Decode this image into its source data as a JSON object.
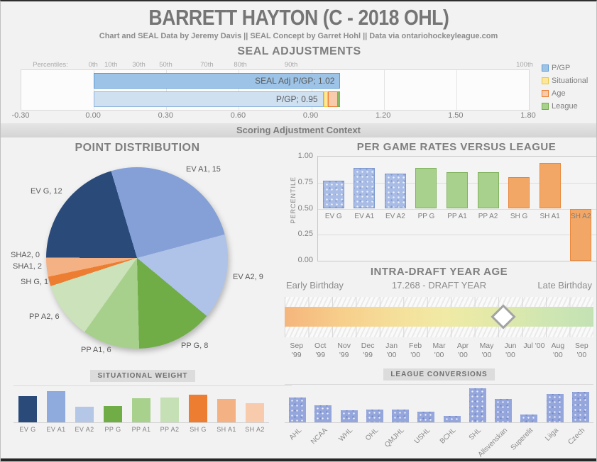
{
  "header": {
    "title": "BARRETT HAYTON (C - 2018 OHL)",
    "subtitle": "Chart and SEAL Data by Jeremy Davis || SEAL Concept by Garret Hohl || Data via ontariohockeyleague.com"
  },
  "divider": {
    "label": "Scoring Adjustment Context"
  },
  "chart_data": [
    {
      "type": "bar",
      "orientation": "horizontal-stacked",
      "title": "SEAL ADJUSTMENTS",
      "xlim": [
        -0.3,
        1.8
      ],
      "x_ticks": [
        "-0.30",
        "0.00",
        "0.30",
        "0.60",
        "0.90",
        "1.20",
        "1.50",
        "1.80"
      ],
      "percentiles_label": "Percentiles:",
      "percentile_scale": [
        {
          "label": "0th",
          "pos_pct": 14.3
        },
        {
          "label": "10th",
          "pos_pct": 17.8
        },
        {
          "label": "30th",
          "pos_pct": 23.3
        },
        {
          "label": "50th",
          "pos_pct": 28.6
        },
        {
          "label": "70th",
          "pos_pct": 36.7
        },
        {
          "label": "80th",
          "pos_pct": 43.3
        },
        {
          "label": "90th",
          "pos_pct": 53.3
        },
        {
          "label": "100th",
          "pos_pct": 99.3
        }
      ],
      "rows": [
        {
          "name": "SEAL Adj P/GP",
          "label": "SEAL Adj P/GP; 1.02",
          "value": 1.02,
          "fill": "#9DC3E6",
          "border": "#5B9BD5"
        },
        {
          "name": "P/GP",
          "label": "P/GP; 0.95",
          "segments": [
            {
              "name": "P/GP",
              "value": 0.95,
              "fill": "#CFE0F1",
              "border": "#8EB4DC"
            },
            {
              "name": "Situational",
              "value": 0.02,
              "fill": "#FFE699",
              "border": "#E7C945"
            },
            {
              "name": "Age",
              "value": 0.04,
              "fill": "#F8CBAD",
              "border": "#ED7D31"
            },
            {
              "name": "League",
              "value": 0.01,
              "fill": "#A9D18E",
              "border": "#70AD47"
            }
          ]
        }
      ],
      "legend_position": "right",
      "legend": [
        {
          "label": "P/GP",
          "fill": "#9DC3E6",
          "border": "#5B9BD5"
        },
        {
          "label": "Situational",
          "fill": "#FFE699",
          "border": "#E7C945"
        },
        {
          "label": "Age",
          "fill": "#F8CBAD",
          "border": "#ED7D31"
        },
        {
          "label": "League",
          "fill": "#A9D18E",
          "border": "#70AD47"
        }
      ]
    },
    {
      "type": "pie",
      "title": "POINT DISTRIBUTION",
      "start_angle_deg": -16.6,
      "slices": [
        {
          "name": "EV A1",
          "value": 15,
          "label": "EV A1, 15",
          "color": "#84A0D6"
        },
        {
          "name": "EV A2",
          "value": 9,
          "label": "EV A2, 9",
          "color": "#AFC2E8"
        },
        {
          "name": "PP G",
          "value": 8,
          "label": "PP G, 8",
          "color": "#70AD47"
        },
        {
          "name": "PP A1",
          "value": 6,
          "label": "PP A1, 6",
          "color": "#A6D08C"
        },
        {
          "name": "PP A2",
          "value": 6,
          "label": "PP A2, 6",
          "color": "#CBE2BA"
        },
        {
          "name": "SH G",
          "value": 1,
          "label": "SH G, 1",
          "color": "#ED7D31"
        },
        {
          "name": "SH A1",
          "value": 2,
          "label": "SHA1, 2",
          "color": "#F4B183"
        },
        {
          "name": "SH A2",
          "value": 0,
          "label": "SHA2, 0",
          "color": "#F8CBAD"
        },
        {
          "name": "EV G",
          "value": 12,
          "label": "EV G, 12",
          "color": "#2A4A7A"
        }
      ]
    },
    {
      "type": "bar",
      "title": "PER GAME RATES VERSUS LEAGUE",
      "ylabel": "PERCENTILE",
      "ylim": [
        0,
        1
      ],
      "y_ticks": [
        "1.00",
        "0.75",
        "0.50",
        "0.25",
        "0.00"
      ],
      "baseline": 0.5,
      "grid": true,
      "categories": [
        "EV G",
        "EV A1",
        "EV A2",
        "PP G",
        "PP A1",
        "PP A2",
        "SH G",
        "SH A1",
        "SH A2"
      ],
      "values": [
        0.77,
        0.89,
        0.84,
        0.89,
        0.85,
        0.85,
        0.8,
        0.94,
        0.0
      ],
      "bar_styles": [
        "ev",
        "ev",
        "ev",
        "pp",
        "pp",
        "pp",
        "sh",
        "sh",
        "sh"
      ]
    },
    {
      "type": "scale",
      "title": "INTRA-DRAFT YEAR AGE",
      "left_label": "Early Birthday",
      "center_label": "17.268 - DRAFT YEAR",
      "right_label": "Late Birthday",
      "marker_pos_pct": 70.8,
      "gradient": [
        "#F5B57C",
        "#F0EAA6",
        "#C3E2B4"
      ],
      "months": [
        {
          "line1": "Sep",
          "line2": "'99"
        },
        {
          "line1": "Oct",
          "line2": "'99"
        },
        {
          "line1": "Nov",
          "line2": "'99"
        },
        {
          "line1": "Dec",
          "line2": "'99"
        },
        {
          "line1": "Jan",
          "line2": "'00"
        },
        {
          "line1": "Feb",
          "line2": "'00"
        },
        {
          "line1": "Mar",
          "line2": "'00"
        },
        {
          "line1": "Apr",
          "line2": "'00"
        },
        {
          "line1": "May",
          "line2": "'00"
        },
        {
          "line1": "Jun",
          "line2": "'00"
        },
        {
          "line1": "Jul '00",
          "line2": ""
        },
        {
          "line1": "Aug",
          "line2": "'00"
        },
        {
          "line1": "Sep",
          "line2": "'00"
        }
      ]
    },
    {
      "type": "bar",
      "title": "SITUATIONAL WEIGHT",
      "categories": [
        "EV G",
        "EV A1",
        "EV A2",
        "PP G",
        "PP A1",
        "PP A2",
        "SH G",
        "SH A1",
        "SH A2"
      ],
      "values": [
        0.83,
        1.0,
        0.51,
        0.53,
        0.78,
        0.79,
        0.89,
        0.74,
        0.61
      ],
      "colors": [
        "#2A4A7A",
        "#8FAADC",
        "#B4C7E7",
        "#70AD47",
        "#A9D18E",
        "#C5E0B4",
        "#ED7D31",
        "#F4B183",
        "#F8CBAD"
      ]
    },
    {
      "type": "bar",
      "title": "LEAGUE CONVERSIONS",
      "bar_color": "#94A6DC",
      "categories": [
        "AHL",
        "NCAA",
        "WHL",
        "OHL",
        "QMJHL",
        "USHL",
        "BCHL",
        "SHL",
        "Allsvenskan",
        "Superelit",
        "Liiga",
        "Czech"
      ],
      "values": [
        0.72,
        0.5,
        0.35,
        0.37,
        0.37,
        0.32,
        0.18,
        1.0,
        0.68,
        0.22,
        0.83,
        0.9
      ]
    }
  ]
}
